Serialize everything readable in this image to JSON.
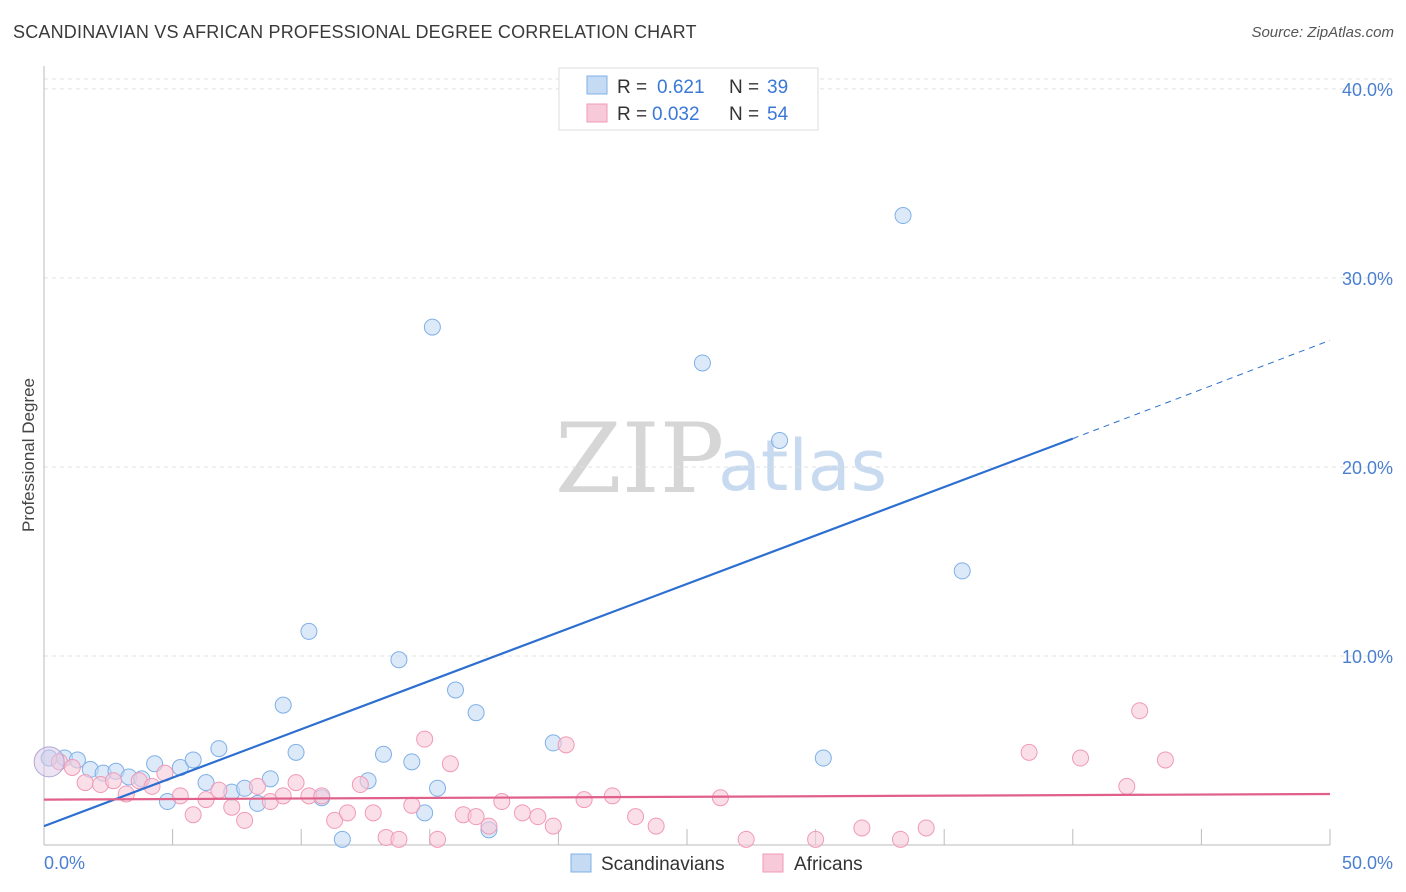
{
  "title": "SCANDINAVIAN VS AFRICAN PROFESSIONAL DEGREE CORRELATION CHART",
  "source": "Source: ZipAtlas.com",
  "watermark": {
    "zip": "ZIP",
    "atlas": "atlas"
  },
  "chart_data": {
    "type": "scatter",
    "ylabel": "Professional Degree",
    "xlim": [
      0,
      50
    ],
    "ylim": [
      0,
      41
    ],
    "x_tick_labels": [
      "0.0%",
      "50.0%"
    ],
    "y_ticks": [
      10,
      20,
      30,
      40
    ],
    "y_tick_labels": [
      "10.0%",
      "20.0%",
      "30.0%",
      "40.0%"
    ],
    "grid": true,
    "legend_stats": [
      {
        "r_label": "R =",
        "r_value": "0.621",
        "n_label": "N =",
        "n_value": "39"
      },
      {
        "r_label": "R =",
        "r_value": "0.032",
        "n_label": "N =",
        "n_value": "54"
      }
    ],
    "series": [
      {
        "name": "Scandinavians",
        "color": "#7fb0e8",
        "fill": "#c5daf3",
        "line_color": "#2c6fd0",
        "trend": {
          "x0": 0,
          "y0": 1.0,
          "x1": 40,
          "y1": 21.5,
          "dash_to_x": 50,
          "dash_to_y": 26.7
        },
        "points": [
          [
            0.2,
            4.6
          ],
          [
            0.8,
            4.6
          ],
          [
            1.3,
            4.5
          ],
          [
            1.8,
            4.0
          ],
          [
            2.3,
            3.8
          ],
          [
            2.8,
            3.9
          ],
          [
            3.3,
            3.6
          ],
          [
            3.8,
            3.5
          ],
          [
            4.3,
            4.3
          ],
          [
            4.8,
            2.3
          ],
          [
            5.3,
            4.1
          ],
          [
            5.8,
            4.5
          ],
          [
            6.3,
            3.3
          ],
          [
            6.8,
            5.1
          ],
          [
            7.3,
            2.8
          ],
          [
            7.8,
            3.0
          ],
          [
            8.3,
            2.2
          ],
          [
            8.8,
            3.5
          ],
          [
            9.3,
            7.4
          ],
          [
            9.8,
            4.9
          ],
          [
            10.3,
            11.3
          ],
          [
            10.8,
            2.5
          ],
          [
            11.6,
            0.3
          ],
          [
            12.6,
            3.4
          ],
          [
            13.2,
            4.8
          ],
          [
            13.8,
            9.8
          ],
          [
            14.3,
            4.4
          ],
          [
            14.8,
            1.7
          ],
          [
            15.3,
            3.0
          ],
          [
            15.1,
            27.4
          ],
          [
            16.0,
            8.2
          ],
          [
            16.8,
            7.0
          ],
          [
            17.3,
            0.8
          ],
          [
            19.8,
            5.4
          ],
          [
            25.6,
            25.5
          ],
          [
            28.6,
            21.4
          ],
          [
            30.3,
            4.6
          ],
          [
            33.4,
            33.3
          ],
          [
            35.7,
            14.5
          ]
        ]
      },
      {
        "name": "Africans",
        "color": "#f09ab6",
        "fill": "#f8cad9",
        "line_color": "#e0608a",
        "trend": {
          "x0": 0,
          "y0": 2.4,
          "x1": 50,
          "y1": 2.7
        },
        "points": [
          [
            0.6,
            4.4
          ],
          [
            1.1,
            4.1
          ],
          [
            1.6,
            3.3
          ],
          [
            2.2,
            3.2
          ],
          [
            2.7,
            3.4
          ],
          [
            3.2,
            2.7
          ],
          [
            3.7,
            3.4
          ],
          [
            4.2,
            3.1
          ],
          [
            4.7,
            3.8
          ],
          [
            5.3,
            2.6
          ],
          [
            5.8,
            1.6
          ],
          [
            6.3,
            2.4
          ],
          [
            6.8,
            2.9
          ],
          [
            7.3,
            2.0
          ],
          [
            7.8,
            1.3
          ],
          [
            8.3,
            3.1
          ],
          [
            8.8,
            2.3
          ],
          [
            9.3,
            2.6
          ],
          [
            9.8,
            3.3
          ],
          [
            10.3,
            2.6
          ],
          [
            10.8,
            2.6
          ],
          [
            11.3,
            1.3
          ],
          [
            11.8,
            1.7
          ],
          [
            12.3,
            3.2
          ],
          [
            12.8,
            1.7
          ],
          [
            13.3,
            0.4
          ],
          [
            13.8,
            0.3
          ],
          [
            14.3,
            2.1
          ],
          [
            14.8,
            5.6
          ],
          [
            15.3,
            0.3
          ],
          [
            15.8,
            4.3
          ],
          [
            16.3,
            1.6
          ],
          [
            16.8,
            1.5
          ],
          [
            17.3,
            1.0
          ],
          [
            17.8,
            2.3
          ],
          [
            18.6,
            1.7
          ],
          [
            19.2,
            1.5
          ],
          [
            19.8,
            1.0
          ],
          [
            20.3,
            5.3
          ],
          [
            21.0,
            2.4
          ],
          [
            22.1,
            2.6
          ],
          [
            23.0,
            1.5
          ],
          [
            23.8,
            1.0
          ],
          [
            26.3,
            2.5
          ],
          [
            27.3,
            0.3
          ],
          [
            30.0,
            0.3
          ],
          [
            31.8,
            0.9
          ],
          [
            33.3,
            0.3
          ],
          [
            34.3,
            0.9
          ],
          [
            38.3,
            4.9
          ],
          [
            40.3,
            4.6
          ],
          [
            42.1,
            3.1
          ],
          [
            42.6,
            7.1
          ],
          [
            43.6,
            4.5
          ]
        ]
      }
    ]
  }
}
